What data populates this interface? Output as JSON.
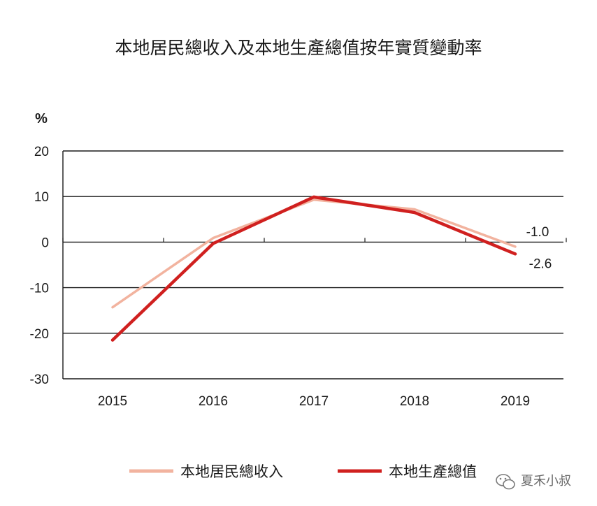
{
  "chart_data": {
    "type": "line",
    "title": "本地居民總收入及本地生產總值按年實質變動率",
    "ylabel": "%",
    "xlabel": "",
    "x": [
      "2015",
      "2016",
      "2017",
      "2018",
      "2019"
    ],
    "ylim": [
      -30,
      20
    ],
    "yticks": [
      20,
      10,
      0,
      -10,
      -20,
      -30
    ],
    "grid": true,
    "legend_position": "bottom",
    "series": [
      {
        "name": "本地居民總收入",
        "values": [
          -14.3,
          0.9,
          9.3,
          7.2,
          -1.0
        ],
        "color": "#f2b39f"
      },
      {
        "name": "本地生產總值",
        "values": [
          -21.5,
          -0.3,
          9.9,
          6.5,
          -2.6
        ],
        "color": "#d0201f"
      }
    ],
    "annotations": [
      {
        "text": "-1.0",
        "series": 0,
        "x": "2019"
      },
      {
        "text": "-2.6",
        "series": 1,
        "x": "2019"
      }
    ]
  },
  "watermark": {
    "text": "夏禾小叔",
    "icon": "wechat-icon"
  }
}
